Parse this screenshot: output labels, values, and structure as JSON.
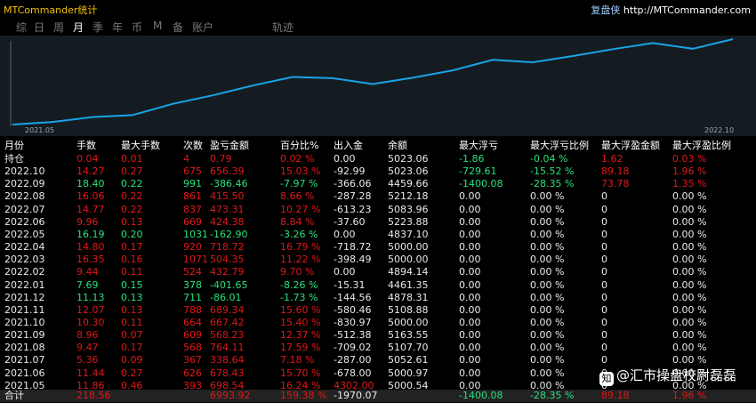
{
  "app_title": "MTCommander统计",
  "brand_label": "复盘侠",
  "brand_url": "http://MTCommander.com",
  "tabs": [
    "综",
    "日",
    "周",
    "月",
    "季",
    "年",
    "币",
    "M",
    "备",
    "账户",
    "轨迹"
  ],
  "active_tab": "月",
  "chart_data": {
    "type": "line",
    "x_range_labels": [
      "2021.05",
      "2022.10"
    ],
    "x": [
      "2021.05",
      "2021.06",
      "2021.07",
      "2021.08",
      "2021.09",
      "2021.10",
      "2021.11",
      "2021.12",
      "2022.01",
      "2022.02",
      "2022.03",
      "2022.04",
      "2022.05",
      "2022.06",
      "2022.07",
      "2022.08",
      "2022.09",
      "2022.10"
    ],
    "values": [
      5000.54,
      5000.97,
      5052.61,
      5107.7,
      5163.55,
      5000.0,
      5108.88,
      4878.31,
      4461.35,
      4894.14,
      5000.0,
      5000.0,
      4837.1,
      5223.88,
      5083.96,
      5212.18,
      4459.66,
      5023.06
    ],
    "equity_curve": [
      5000.54,
      5179.08,
      5510.62,
      5647.34,
      6411.45,
      6999.68,
      7666.6,
      8256.94,
      8170.88,
      7769.23,
      8202.02,
      8706.37,
      9425.09,
      9262.19,
      9686.57,
      10159.88,
      10575.38,
      10189.02,
      10845.41
    ],
    "grid": false,
    "line_color": "#1aa3e8"
  },
  "table": {
    "headers": [
      "月份",
      "手数",
      "最大手数",
      "次数",
      "盈亏金额",
      "百分比%",
      "出入金",
      "余额",
      "最大浮亏",
      "最大浮亏比例",
      "最大浮盈金额",
      "最大浮盈比例"
    ],
    "rows": [
      {
        "c": [
          "持仓",
          "0.04",
          "0.01",
          "4",
          "0.79",
          "0.02 %",
          "0.00",
          "5023.06",
          "-1.86",
          "-0.04 %",
          "1.62",
          "0.03 %"
        ],
        "t": [
          "w",
          "r",
          "r",
          "r",
          "r",
          "r",
          "w",
          "w",
          "g",
          "g",
          "r",
          "r"
        ]
      },
      {
        "c": [
          "2022.10",
          "14.27",
          "0.27",
          "675",
          "656.39",
          "15.03 %",
          "-92.99",
          "5023.06",
          "-729.61",
          "-15.52 %",
          "89.18",
          "1.96 %"
        ],
        "t": [
          "w",
          "r",
          "r",
          "r",
          "r",
          "r",
          "w",
          "w",
          "g",
          "g",
          "r",
          "r"
        ]
      },
      {
        "c": [
          "2022.09",
          "18.40",
          "0.22",
          "991",
          "-386.46",
          "-7.97 %",
          "-366.06",
          "4459.66",
          "-1400.08",
          "-28.35 %",
          "73.78",
          "1.35 %"
        ],
        "t": [
          "w",
          "g",
          "g",
          "g",
          "g",
          "g",
          "w",
          "w",
          "g",
          "g",
          "r",
          "r"
        ]
      },
      {
        "c": [
          "2022.08",
          "16.06",
          "0.22",
          "861",
          "415.50",
          "8.66 %",
          "-287.28",
          "5212.18",
          "0.00",
          "0.00 %",
          "0",
          "0.00 %"
        ],
        "t": [
          "w",
          "r",
          "r",
          "r",
          "r",
          "r",
          "w",
          "w",
          "w",
          "w",
          "w",
          "w"
        ]
      },
      {
        "c": [
          "2022.07",
          "14.77",
          "0.22",
          "837",
          "473.31",
          "10.27 %",
          "-613.23",
          "5083.96",
          "0.00",
          "0.00 %",
          "0",
          "0.00 %"
        ],
        "t": [
          "w",
          "r",
          "r",
          "r",
          "r",
          "r",
          "w",
          "w",
          "w",
          "w",
          "w",
          "w"
        ]
      },
      {
        "c": [
          "2022.06",
          "9.96",
          "0.13",
          "669",
          "424.38",
          "8.84 %",
          "-37.60",
          "5223.88",
          "0.00",
          "0.00 %",
          "0",
          "0.00 %"
        ],
        "t": [
          "w",
          "r",
          "r",
          "r",
          "r",
          "r",
          "w",
          "w",
          "w",
          "w",
          "w",
          "w"
        ]
      },
      {
        "c": [
          "2022.05",
          "16.19",
          "0.20",
          "1031",
          "-162.90",
          "-3.26 %",
          "0.00",
          "4837.10",
          "0.00",
          "0.00 %",
          "0",
          "0.00 %"
        ],
        "t": [
          "w",
          "g",
          "g",
          "g",
          "g",
          "g",
          "w",
          "w",
          "w",
          "w",
          "w",
          "w"
        ]
      },
      {
        "c": [
          "2022.04",
          "14.80",
          "0.17",
          "920",
          "718.72",
          "16.79 %",
          "-718.72",
          "5000.00",
          "0.00",
          "0.00 %",
          "0",
          "0.00 %"
        ],
        "t": [
          "w",
          "r",
          "r",
          "r",
          "r",
          "r",
          "w",
          "w",
          "w",
          "w",
          "w",
          "w"
        ]
      },
      {
        "c": [
          "2022.03",
          "16.35",
          "0.16",
          "1071",
          "504.35",
          "11.22 %",
          "-398.49",
          "5000.00",
          "0.00",
          "0.00 %",
          "0",
          "0.00 %"
        ],
        "t": [
          "w",
          "r",
          "r",
          "r",
          "r",
          "r",
          "w",
          "w",
          "w",
          "w",
          "w",
          "w"
        ]
      },
      {
        "c": [
          "2022.02",
          "9.44",
          "0.11",
          "524",
          "432.79",
          "9.70 %",
          "0.00",
          "4894.14",
          "0.00",
          "0.00 %",
          "0",
          "0.00 %"
        ],
        "t": [
          "w",
          "r",
          "r",
          "r",
          "r",
          "r",
          "w",
          "w",
          "w",
          "w",
          "w",
          "w"
        ]
      },
      {
        "c": [
          "2022.01",
          "7.69",
          "0.15",
          "378",
          "-401.65",
          "-8.26 %",
          "-15.31",
          "4461.35",
          "0.00",
          "0.00 %",
          "0",
          "0.00 %"
        ],
        "t": [
          "w",
          "g",
          "g",
          "g",
          "g",
          "g",
          "w",
          "w",
          "w",
          "w",
          "w",
          "w"
        ]
      },
      {
        "c": [
          "2021.12",
          "11.13",
          "0.13",
          "711",
          "-86.01",
          "-1.73 %",
          "-144.56",
          "4878.31",
          "0.00",
          "0.00 %",
          "0",
          "0.00 %"
        ],
        "t": [
          "w",
          "g",
          "g",
          "g",
          "g",
          "g",
          "w",
          "w",
          "w",
          "w",
          "w",
          "w"
        ]
      },
      {
        "c": [
          "2021.11",
          "12.07",
          "0.13",
          "788",
          "689.34",
          "15.60 %",
          "-580.46",
          "5108.88",
          "0.00",
          "0.00 %",
          "0",
          "0.00 %"
        ],
        "t": [
          "w",
          "r",
          "r",
          "r",
          "r",
          "r",
          "w",
          "w",
          "w",
          "w",
          "w",
          "w"
        ]
      },
      {
        "c": [
          "2021.10",
          "10.30",
          "0.11",
          "664",
          "667.42",
          "15.40 %",
          "-830.97",
          "5000.00",
          "0.00",
          "0.00 %",
          "0",
          "0.00 %"
        ],
        "t": [
          "w",
          "r",
          "r",
          "r",
          "r",
          "r",
          "w",
          "w",
          "w",
          "w",
          "w",
          "w"
        ]
      },
      {
        "c": [
          "2021.09",
          "8.96",
          "0.07",
          "609",
          "568.23",
          "12.37 %",
          "-512.38",
          "5163.55",
          "0.00",
          "0.00 %",
          "0",
          "0.00 %"
        ],
        "t": [
          "w",
          "r",
          "r",
          "r",
          "r",
          "r",
          "w",
          "w",
          "w",
          "w",
          "w",
          "w"
        ]
      },
      {
        "c": [
          "2021.08",
          "9.47",
          "0.17",
          "568",
          "764.11",
          "17.59 %",
          "-709.02",
          "5107.70",
          "0.00",
          "0.00 %",
          "0",
          "0.00 %"
        ],
        "t": [
          "w",
          "r",
          "r",
          "r",
          "r",
          "r",
          "w",
          "w",
          "w",
          "w",
          "w",
          "w"
        ]
      },
      {
        "c": [
          "2021.07",
          "5.36",
          "0.09",
          "367",
          "338.64",
          "7.18 %",
          "-287.00",
          "5052.61",
          "0.00",
          "0.00 %",
          "0",
          "0.00 %"
        ],
        "t": [
          "w",
          "r",
          "r",
          "r",
          "r",
          "r",
          "w",
          "w",
          "w",
          "w",
          "w",
          "w"
        ]
      },
      {
        "c": [
          "2021.06",
          "11.44",
          "0.27",
          "626",
          "678.43",
          "15.70 %",
          "-678.00",
          "5000.97",
          "0.00",
          "0.00 %",
          "0",
          "0.00 %"
        ],
        "t": [
          "w",
          "r",
          "r",
          "r",
          "r",
          "r",
          "w",
          "w",
          "w",
          "w",
          "w",
          "w"
        ]
      },
      {
        "c": [
          "2021.05",
          "11.86",
          "0.46",
          "393",
          "698.54",
          "16.24 %",
          "4302.00",
          "5000.54",
          "0.00",
          "0.00 %",
          "0",
          "0.00 %"
        ],
        "t": [
          "w",
          "r",
          "r",
          "r",
          "r",
          "r",
          "r",
          "w",
          "w",
          "w",
          "w",
          "w"
        ]
      }
    ],
    "totals": {
      "c": [
        "合计",
        "218.56",
        "",
        "",
        "6993.92",
        "159.38 %",
        "-1970.07",
        "",
        "-1400.08",
        "-28.35 %",
        "89.18",
        "1.96 %"
      ],
      "t": [
        "w",
        "r",
        "r",
        "r",
        "r",
        "r",
        "w",
        "w",
        "g",
        "g",
        "r",
        "r"
      ]
    }
  },
  "watermark": {
    "badge": "知",
    "text": "@汇市操盘校尉磊磊"
  }
}
